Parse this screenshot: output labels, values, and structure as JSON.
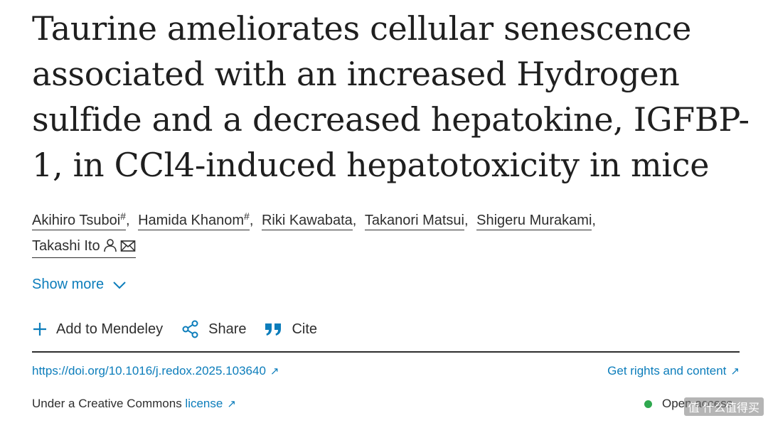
{
  "article": {
    "title": "Taurine ameliorates cellular senescence associated with an increased Hydrogen sulfide and a decreased hepatokine, IGFBP-1, in CCl4-induced hepatotoxicity in mice"
  },
  "authors": [
    {
      "name": "Akihiro Tsuboi",
      "mark": "#"
    },
    {
      "name": "Hamida Khanom",
      "mark": "#"
    },
    {
      "name": "Riki Kawabata",
      "mark": ""
    },
    {
      "name": "Takanori Matsui",
      "mark": ""
    },
    {
      "name": "Shigeru Murakami",
      "mark": ""
    },
    {
      "name": "Takashi Ito",
      "mark": ""
    }
  ],
  "separator": ",",
  "icons": {
    "corresponding_author": "person-icon",
    "email": "envelope-icon",
    "show_more": "chevron-down-icon",
    "add": "plus-icon",
    "share": "share-icon",
    "cite": "quote-icon",
    "external": "external-link-icon"
  },
  "show_more": {
    "label": "Show more"
  },
  "actions": {
    "add_to_mendeley": "Add to Mendeley",
    "share": "Share",
    "cite": "Cite"
  },
  "links": {
    "doi": "https://doi.org/10.1016/j.redox.2025.103640",
    "rights": "Get rights and content",
    "external_glyph": "↗"
  },
  "license": {
    "prefix": "Under a Creative Commons ",
    "link": "license"
  },
  "access": {
    "label": "Open access"
  },
  "watermark": {
    "text": "值 什么值得买"
  },
  "colors": {
    "link": "#0c7dbb",
    "text": "#2e2e2e",
    "open_access_dot": "#2fa84f"
  }
}
